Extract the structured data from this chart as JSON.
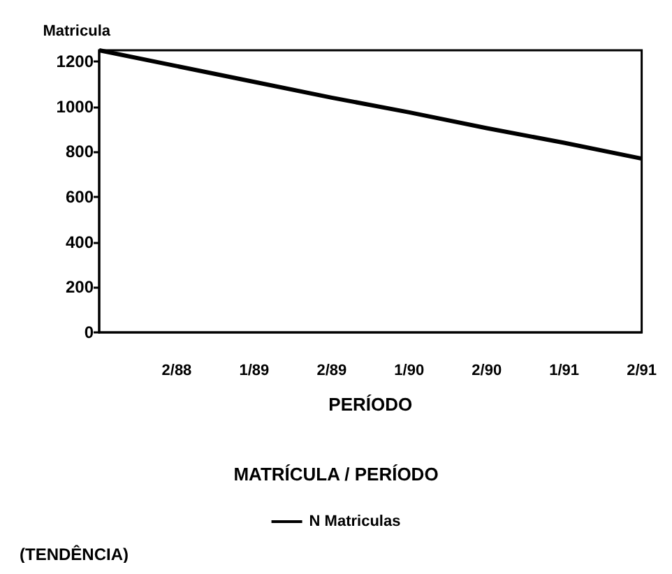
{
  "chart_data": {
    "type": "line",
    "title": "MATRÍCULA / PERÍODO",
    "xlabel": "PERÍODO",
    "ylabel": "Matricula",
    "categories": [
      null,
      "2/88",
      "1/89",
      "2/89",
      "1/90",
      "2/90",
      "1/91",
      "2/91"
    ],
    "series": [
      {
        "name": "N Matriculas",
        "color": "#000000",
        "values": [
          1250,
          1180,
          1110,
          1040,
          975,
          905,
          840,
          770
        ]
      }
    ],
    "ylim": [
      0,
      1250
    ],
    "yticks": [
      0,
      200,
      400,
      600,
      800,
      1000,
      1200
    ],
    "grid": false,
    "legend": "bottom",
    "marker": "none",
    "line_style": "solid",
    "annotations": [
      "(TENDÊNCIA)"
    ]
  }
}
